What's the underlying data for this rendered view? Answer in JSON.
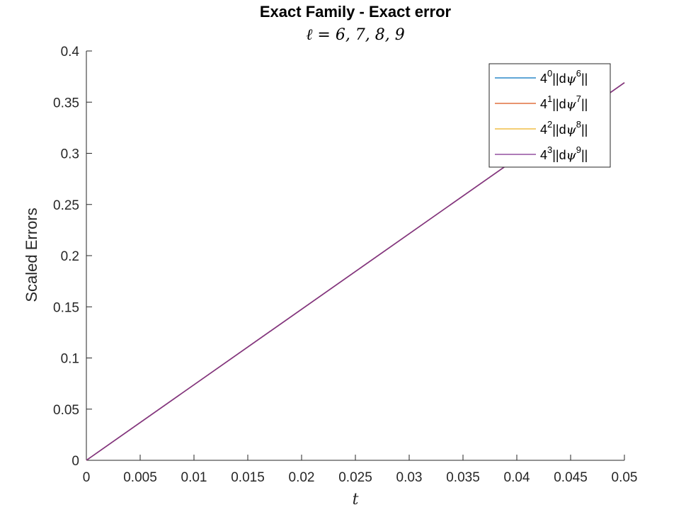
{
  "chart_data": {
    "type": "line",
    "title": "Exact Family - Exact error",
    "subtitle": "ℓ = 6, 7, 8, 9",
    "xlabel": "t",
    "ylabel": "Scaled Errors",
    "xlim": [
      0,
      0.05
    ],
    "ylim": [
      0,
      0.4
    ],
    "x_ticks": [
      "0",
      "0.005",
      "0.01",
      "0.015",
      "0.02",
      "0.025",
      "0.03",
      "0.035",
      "0.04",
      "0.045",
      "0.05"
    ],
    "y_ticks": [
      "0",
      "0.05",
      "0.1",
      "0.15",
      "0.2",
      "0.25",
      "0.3",
      "0.35",
      "0.4"
    ],
    "grid": false,
    "legend_position": "top-right",
    "series": [
      {
        "name": "4^0||dψ^6||",
        "base": "4",
        "exp": "0",
        "sup": "6",
        "color": "#0072BD",
        "x": [
          0,
          0.05
        ],
        "y": [
          0,
          0.369
        ]
      },
      {
        "name": "4^1||dψ^7||",
        "base": "4",
        "exp": "1",
        "sup": "7",
        "color": "#D95319",
        "x": [
          0,
          0.05
        ],
        "y": [
          0,
          0.369
        ]
      },
      {
        "name": "4^2||dψ^8||",
        "base": "4",
        "exp": "2",
        "sup": "8",
        "color": "#EDB120",
        "x": [
          0,
          0.05
        ],
        "y": [
          0,
          0.369
        ]
      },
      {
        "name": "4^3||dψ^9||",
        "base": "4",
        "exp": "3",
        "sup": "9",
        "color": "#7E2F8E",
        "x": [
          0,
          0.05
        ],
        "y": [
          0,
          0.369
        ]
      }
    ]
  }
}
